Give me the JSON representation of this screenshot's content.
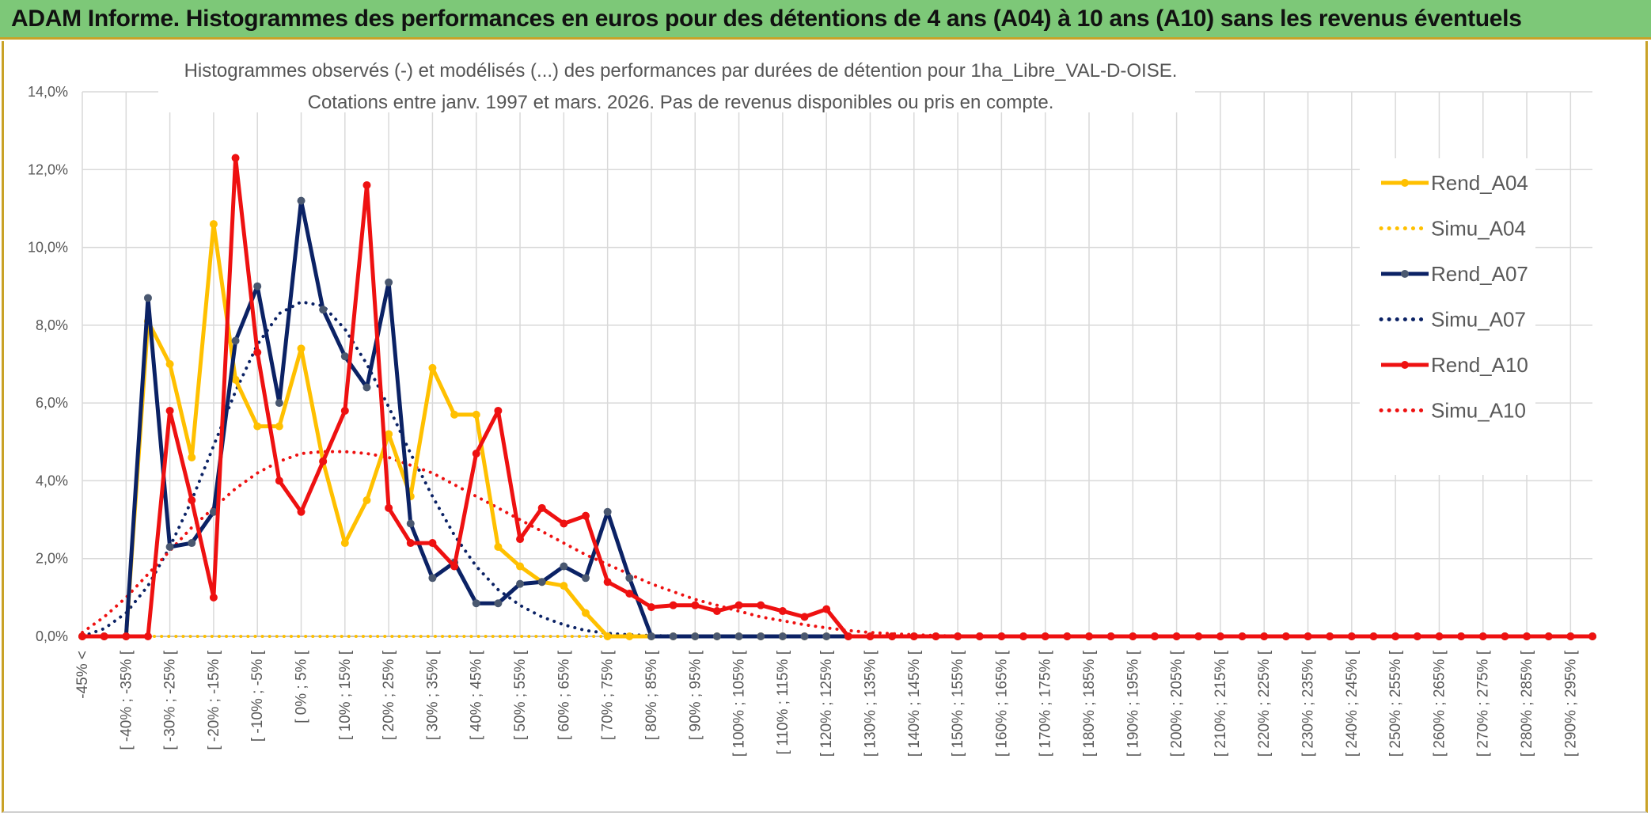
{
  "header": {
    "title": "ADAM Informe. Histogrammes des performances en euros pour des détentions de 4 ans (A04) à 10 ans (A10) sans les revenus éventuels"
  },
  "chart_data": {
    "type": "line",
    "title": "Histogrammes observés (-) et modélisés (...) des performances par durées de détention pour 1ha_Libre_VAL-D-OISE.",
    "subtitle": "Cotations entre janv. 1997 et mars. 2026. Pas de revenus disponibles ou pris en compte.",
    "xlabel": "",
    "ylabel": "",
    "ylim": [
      0,
      14
    ],
    "yticks": [
      "0,0%",
      "2,0%",
      "4,0%",
      "6,0%",
      "8,0%",
      "10,0%",
      "12,0%",
      "14,0%"
    ],
    "grid": true,
    "legend_position": "right",
    "categories": [
      "-45% <",
      "",
      "[ -40% ; -35% [",
      "",
      "[ -30% ; -25% [",
      "",
      "[ -20% ; -15% [",
      "",
      "[ -10% ; -5% [",
      "",
      "[ 0% ; 5% [",
      "",
      "[ 10% ; 15% [",
      "",
      "[ 20% ; 25% [",
      "",
      "[ 30% ; 35% [",
      "",
      "[ 40% ; 45% [",
      "",
      "[ 50% ; 55% [",
      "",
      "[ 60% ; 65% [",
      "",
      "[ 70% ; 75% [",
      "",
      "[ 80% ; 85% [",
      "",
      "[ 90% ; 95% [",
      "",
      "[ 100% ; 105% [",
      "",
      "[ 110% ; 115% [",
      "",
      "[ 120% ; 125% [",
      "",
      "[ 130% ; 135% [",
      "",
      "[ 140% ; 145% [",
      "",
      "[ 150% ; 155% [",
      "",
      "[ 160% ; 165% [",
      "",
      "[ 170% ; 175% [",
      "",
      "[ 180% ; 185% [",
      "",
      "[ 190% ; 195% [",
      "",
      "[ 200% ; 205% [",
      "",
      "[ 210% ; 215% [",
      "",
      "[ 220% ; 225% [",
      "",
      "[ 230% ; 235% [",
      "",
      "[ 240% ; 245% [",
      "",
      "[ 250% ; 255% [",
      "",
      "[ 260% ; 265% [",
      "",
      "[ 270% ; 275% [",
      "",
      "[ 280% ; 285% [",
      "",
      "[ 290% ; 295% [",
      ""
    ],
    "series": [
      {
        "name": "Rend_A04",
        "style": "solid",
        "color": "#ffc000",
        "values": [
          0,
          0,
          0,
          8.1,
          7.0,
          4.6,
          10.6,
          6.6,
          5.4,
          5.4,
          7.4,
          4.5,
          2.4,
          3.5,
          5.2,
          3.6,
          6.9,
          5.7,
          5.7,
          2.3,
          1.8,
          1.4,
          1.3,
          0.6,
          0,
          0,
          0,
          0,
          0,
          0,
          0,
          0,
          0,
          0,
          0,
          0,
          0,
          0,
          0,
          0,
          0,
          0,
          0,
          0,
          0,
          0,
          0,
          0,
          0,
          0,
          0,
          0,
          0,
          0,
          0,
          0,
          0,
          0,
          0,
          0,
          0,
          0,
          0,
          0,
          0,
          0,
          0,
          0,
          0,
          0
        ]
      },
      {
        "name": "Simu_A04",
        "style": "dotted",
        "color": "#ffc000",
        "values": [
          0,
          0,
          0,
          0,
          0,
          0,
          0,
          0,
          0,
          0,
          0,
          0,
          0,
          0,
          0,
          0,
          0,
          0,
          0,
          0,
          0,
          0,
          0,
          0,
          0,
          0,
          0,
          0,
          0,
          0,
          0,
          0,
          0,
          0,
          0,
          0,
          0,
          0,
          0,
          0,
          0,
          0,
          0,
          0,
          0,
          0,
          0,
          0,
          0,
          0,
          0,
          0,
          0,
          0,
          0,
          0,
          0,
          0,
          0,
          0,
          0,
          0,
          0,
          0,
          0,
          0,
          0,
          0,
          0,
          0
        ]
      },
      {
        "name": "Rend_A07",
        "style": "solid",
        "color": "#0b2265",
        "values": [
          0,
          0,
          0,
          8.7,
          2.3,
          2.4,
          3.2,
          7.6,
          9.0,
          6.0,
          11.2,
          8.4,
          7.2,
          6.4,
          9.1,
          2.9,
          1.5,
          1.9,
          0.85,
          0.85,
          1.35,
          1.4,
          1.8,
          1.5,
          3.2,
          1.5,
          0,
          0,
          0,
          0,
          0,
          0,
          0,
          0,
          0,
          0,
          0,
          0,
          0,
          0,
          0,
          0,
          0,
          0,
          0,
          0,
          0,
          0,
          0,
          0,
          0,
          0,
          0,
          0,
          0,
          0,
          0,
          0,
          0,
          0,
          0,
          0,
          0,
          0,
          0,
          0,
          0,
          0,
          0,
          0
        ]
      },
      {
        "name": "Simu_A07",
        "style": "dotted",
        "color": "#0b2265",
        "values": [
          0,
          0.2,
          0.6,
          1.3,
          2.3,
          3.5,
          4.9,
          6.3,
          7.5,
          8.3,
          8.6,
          8.5,
          7.9,
          7.0,
          5.9,
          4.7,
          3.6,
          2.6,
          1.8,
          1.2,
          0.8,
          0.5,
          0.3,
          0.15,
          0.08,
          0.04,
          0.02,
          0.01,
          0,
          0,
          0,
          0,
          0,
          0,
          0,
          0,
          0,
          0,
          0,
          0,
          0,
          0,
          0,
          0,
          0,
          0,
          0,
          0,
          0,
          0,
          0,
          0,
          0,
          0,
          0,
          0,
          0,
          0,
          0,
          0,
          0,
          0,
          0,
          0,
          0,
          0,
          0,
          0,
          0,
          0
        ]
      },
      {
        "name": "Rend_A10",
        "style": "solid",
        "color": "#ee1111",
        "values": [
          0,
          0,
          0,
          0,
          5.8,
          3.5,
          1.0,
          12.3,
          7.3,
          4.0,
          3.2,
          4.5,
          5.8,
          11.6,
          3.3,
          2.4,
          2.4,
          1.8,
          4.7,
          5.8,
          2.5,
          3.3,
          2.9,
          3.1,
          1.4,
          1.1,
          0.75,
          0.8,
          0.8,
          0.65,
          0.8,
          0.8,
          0.65,
          0.5,
          0.7,
          0,
          0,
          0,
          0,
          0,
          0,
          0,
          0,
          0,
          0,
          0,
          0,
          0,
          0,
          0,
          0,
          0,
          0,
          0,
          0,
          0,
          0,
          0,
          0,
          0,
          0,
          0,
          0,
          0,
          0,
          0,
          0,
          0,
          0,
          0
        ]
      },
      {
        "name": "Simu_A10",
        "style": "dotted",
        "color": "#ee1111",
        "values": [
          0.1,
          0.5,
          1.0,
          1.6,
          2.2,
          2.8,
          3.3,
          3.8,
          4.2,
          4.5,
          4.7,
          4.75,
          4.75,
          4.7,
          4.6,
          4.4,
          4.2,
          3.9,
          3.6,
          3.3,
          3.0,
          2.7,
          2.4,
          2.1,
          1.85,
          1.6,
          1.35,
          1.15,
          0.95,
          0.8,
          0.65,
          0.5,
          0.4,
          0.3,
          0.22,
          0.15,
          0.1,
          0.07,
          0.04,
          0.02,
          0.01,
          0,
          0,
          0,
          0,
          0,
          0,
          0,
          0,
          0,
          0,
          0,
          0,
          0,
          0,
          0,
          0,
          0,
          0,
          0,
          0,
          0,
          0,
          0,
          0,
          0,
          0,
          0,
          0,
          0
        ]
      }
    ]
  }
}
